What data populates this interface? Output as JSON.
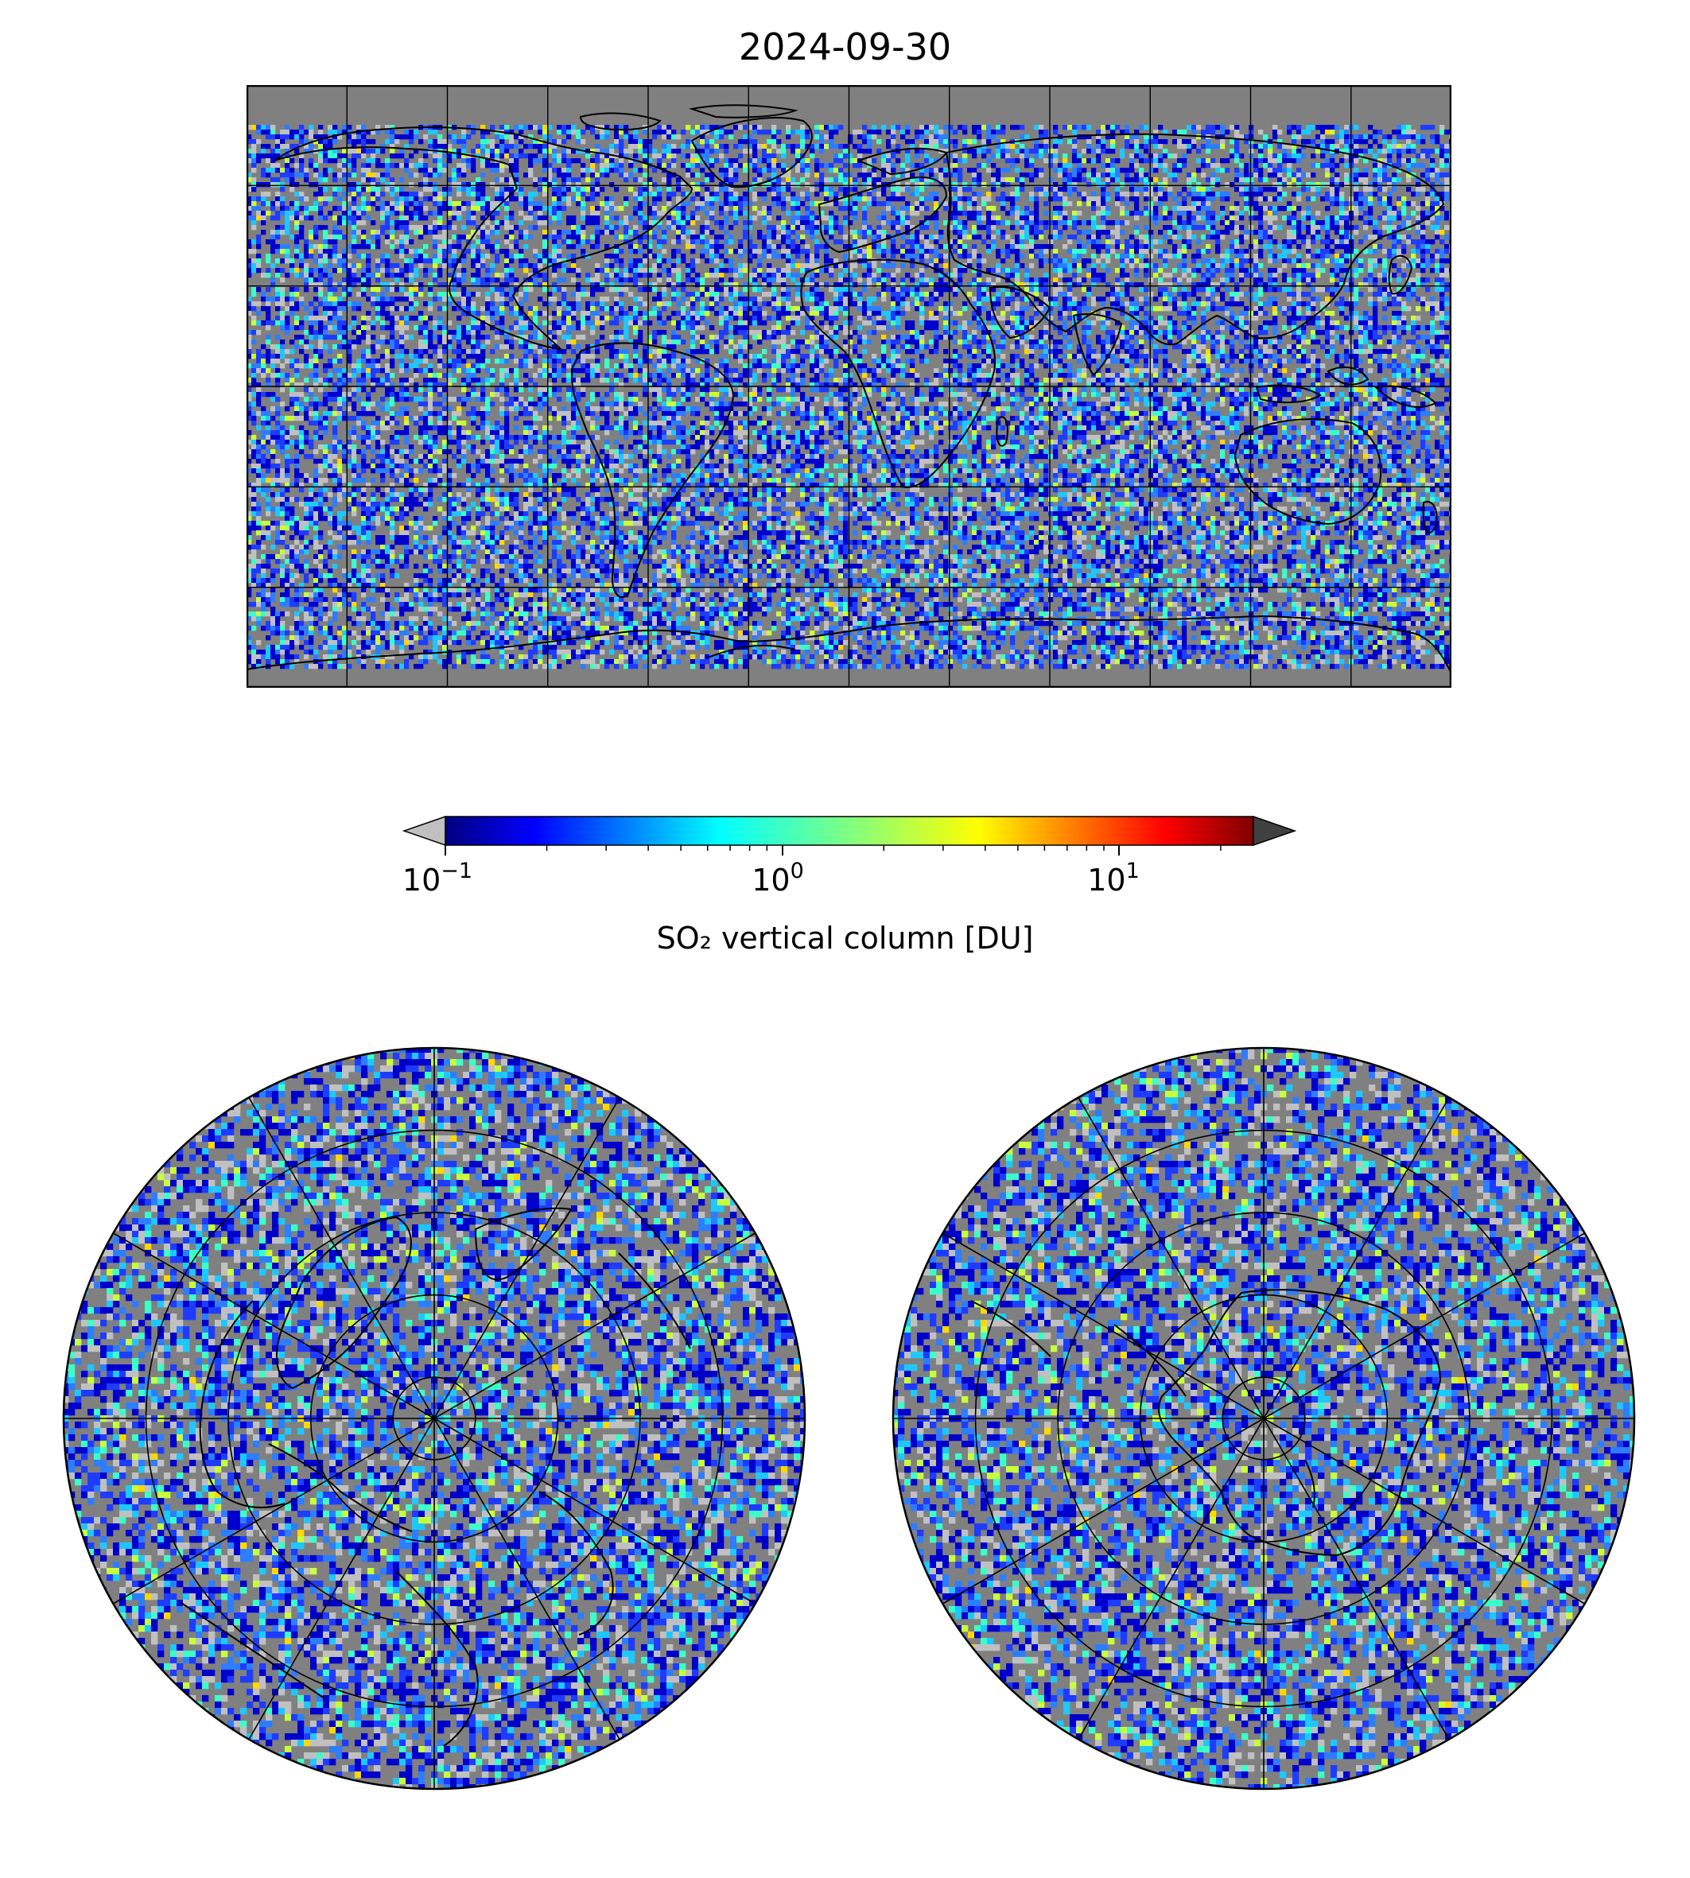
{
  "title": "2024-09-30",
  "colorbar": {
    "label": "SO₂ vertical column [DU]",
    "scale": "log",
    "range": [
      0.1,
      25
    ],
    "ticks": [
      {
        "base": "10",
        "exp": "−1"
      },
      {
        "base": "10",
        "exp": "0"
      },
      {
        "base": "10",
        "exp": "1"
      }
    ],
    "tick_values": [
      0.1,
      1,
      10
    ],
    "colormap": "jet",
    "under_color": "#c0c0c0",
    "over_color": "#404040",
    "extend": "both"
  },
  "maps": {
    "global": {
      "projection": "equirectangular",
      "lon_range": [
        -180,
        180
      ],
      "lat_range": [
        -90,
        90
      ],
      "grid_spacing_deg": {
        "lon": 30,
        "lat": 30
      }
    },
    "north": {
      "projection": "north-polar",
      "grid_lat_circles": [
        80,
        60,
        40,
        20
      ],
      "meridians_deg": 30
    },
    "south": {
      "projection": "south-polar",
      "grid_lat_circles": [
        -80,
        -60,
        -40,
        -20
      ],
      "meridians_deg": 30
    }
  },
  "colors": {
    "background_field": "#808080",
    "coastline": "#000000"
  }
}
